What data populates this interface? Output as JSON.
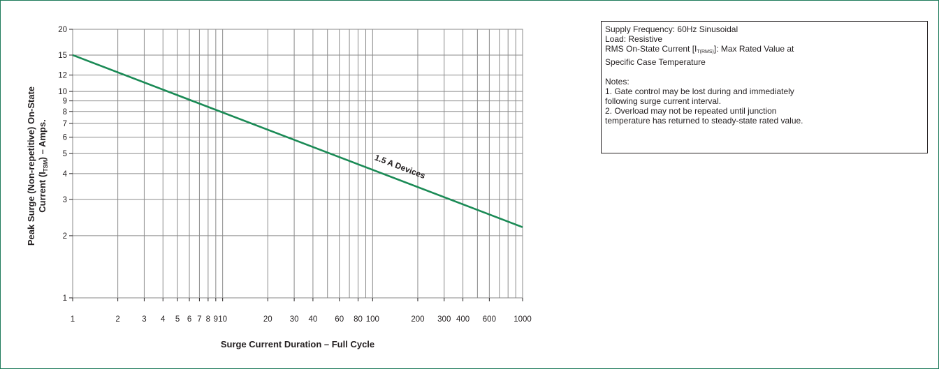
{
  "colors": {
    "line": "#1a8a55",
    "grid": "#8a8a8a",
    "frame": "#1d7a5a",
    "text": "#231f20"
  },
  "chart_data": {
    "type": "line",
    "xscale": "log",
    "yscale": "log",
    "xlim": [
      1,
      1000
    ],
    "ylim": [
      1,
      20
    ],
    "grid": true,
    "xlabel": "Surge Current Duration – Full Cycle",
    "ylabel": {
      "line1": "Peak Surge (Non-repetitive) On-State",
      "line2_pre": "Current (I",
      "line2_sub": "TSM",
      "line2_post": ") – Amps."
    },
    "x_ticks": [
      1,
      2,
      3,
      4,
      5,
      6,
      7,
      8,
      9,
      10,
      20,
      30,
      40,
      60,
      80,
      100,
      200,
      300,
      400,
      600,
      1000
    ],
    "x_tick_labels": [
      "1",
      "2",
      "3",
      "4",
      "5",
      "6",
      "7",
      "8",
      "9",
      "10",
      "20",
      "30",
      "40",
      "60",
      "80",
      "100",
      "200",
      "300",
      "400",
      "600",
      "1000"
    ],
    "x_gridlines": [
      1,
      2,
      3,
      4,
      5,
      6,
      7,
      8,
      9,
      10,
      20,
      30,
      40,
      50,
      60,
      70,
      80,
      90,
      100,
      200,
      300,
      400,
      500,
      600,
      700,
      800,
      900,
      1000
    ],
    "y_ticks": [
      1,
      2,
      3,
      4,
      5,
      6,
      7,
      8,
      9,
      10,
      12,
      15,
      20
    ],
    "y_tick_labels": [
      "1",
      "2",
      "3",
      "4",
      "5",
      "6",
      "7",
      "8",
      "9",
      "10",
      "12",
      "15",
      "20"
    ],
    "series": [
      {
        "name": "1.5 A Devices",
        "x": [
          1,
          1000
        ],
        "y": [
          15,
          2.2
        ]
      }
    ],
    "annotations": [
      {
        "text": "1.5 A Devices",
        "x": 150,
        "y": 4.2
      }
    ]
  },
  "info_box": {
    "conditions": {
      "frequency": "Supply Frequency: 60Hz Sinusoidal",
      "load": "Load: Resistive",
      "rms_pre": "RMS On-State Current [I",
      "rms_sub": "T(RMS)",
      "rms_post": "]: Max Rated Value at",
      "rms_line2": "Specific Case Temperature"
    },
    "notes_title": "Notes:",
    "notes": [
      "1. Gate control may be lost during and immediately",
      "following surge current interval.",
      "2. Overload may not be repeated until junction",
      "temperature has returned to steady-state rated value."
    ]
  }
}
